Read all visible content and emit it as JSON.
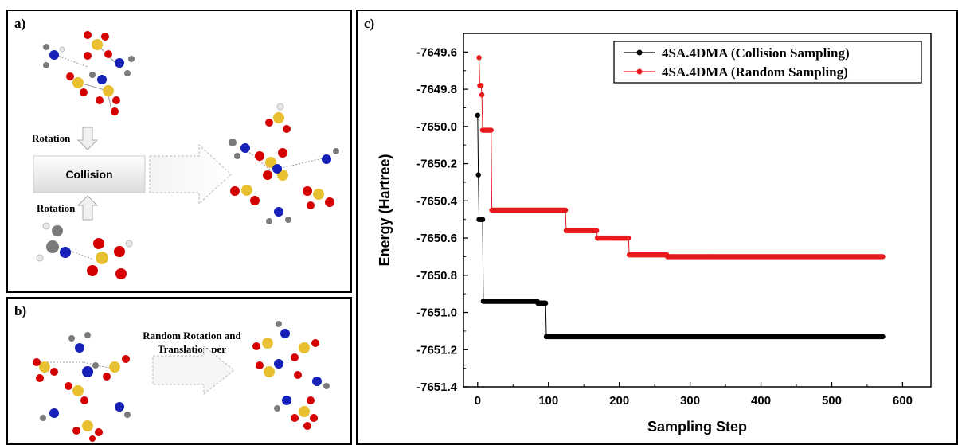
{
  "panels": {
    "a": {
      "label": "a)",
      "rotation_top": "Rotation",
      "rotation_bottom": "Rotation",
      "collision": "Collision"
    },
    "b": {
      "label": "b)",
      "arrow_text_line1": "Random Rotation and",
      "arrow_text_line2": "Translation per molecule"
    },
    "c": {
      "label": "c)"
    }
  },
  "colors": {
    "collision_series": "#000000",
    "random_series": "#e8191c",
    "oxygen": "#d40000",
    "sulfur": "#e8c030",
    "nitrogen": "#1520b8",
    "carbon": "#7a7a7a",
    "hydrogen": "#e8e8e8"
  },
  "chart_data": {
    "type": "line",
    "xlabel": "Sampling Step",
    "ylabel": "Energy (Hartree)",
    "xlim": [
      -20,
      640
    ],
    "ylim": [
      -7651.4,
      -7649.5
    ],
    "xticks": [
      0,
      100,
      200,
      300,
      400,
      500,
      600
    ],
    "yticks": [
      -7651.4,
      -7651.2,
      -7651.0,
      -7650.8,
      -7650.6,
      -7650.4,
      -7650.2,
      -7650.0,
      -7649.8,
      -7649.6
    ],
    "ytick_labels": [
      "-7651.4",
      "-7651.2",
      "-7651.0",
      "-7650.8",
      "-7650.6",
      "-7650.4",
      "-7650.2",
      "-7650.0",
      "-7649.8",
      "-7649.6"
    ],
    "legend_position": "top-right",
    "series": [
      {
        "name": "4SA.4DMA (Collision Sampling)",
        "color": "#000000",
        "segments": [
          {
            "x0": 0,
            "x1": 0,
            "y": -7649.94
          },
          {
            "x0": 1,
            "x1": 1,
            "y": -7650.26
          },
          {
            "x0": 2,
            "x1": 7,
            "y": -7650.5
          },
          {
            "x0": 8,
            "x1": 84,
            "y": -7650.94
          },
          {
            "x0": 85,
            "x1": 96,
            "y": -7650.95
          },
          {
            "x0": 97,
            "x1": 572,
            "y": -7651.13
          }
        ]
      },
      {
        "name": "4SA.4DMA (Random Sampling)",
        "color": "#e8191c",
        "segments": [
          {
            "x0": 2,
            "x1": 2,
            "y": -7649.63
          },
          {
            "x0": 3,
            "x1": 5,
            "y": -7649.78
          },
          {
            "x0": 6,
            "x1": 6,
            "y": -7649.83
          },
          {
            "x0": 7,
            "x1": 19,
            "y": -7650.02
          },
          {
            "x0": 20,
            "x1": 124,
            "y": -7650.45
          },
          {
            "x0": 125,
            "x1": 168,
            "y": -7650.56
          },
          {
            "x0": 169,
            "x1": 213,
            "y": -7650.6
          },
          {
            "x0": 214,
            "x1": 267,
            "y": -7650.69
          },
          {
            "x0": 268,
            "x1": 572,
            "y": -7650.7
          }
        ]
      }
    ]
  }
}
